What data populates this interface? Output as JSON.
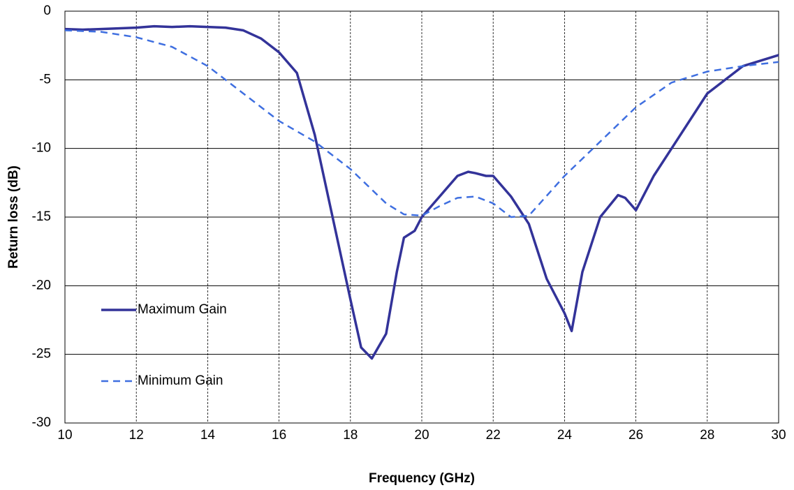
{
  "chart_data": {
    "type": "line",
    "xlabel": "Frequency (GHz)",
    "ylabel": "Return loss  (dB)",
    "xlim": [
      10,
      30
    ],
    "xticks": [
      10,
      12,
      14,
      16,
      18,
      20,
      22,
      24,
      26,
      28,
      30
    ],
    "ylim": [
      -30,
      0
    ],
    "yticks": [
      0,
      -5,
      -10,
      -15,
      -20,
      -25,
      -30
    ],
    "grid": true,
    "legend": "lower left",
    "series": [
      {
        "name": "Maximum Gain",
        "color": "#333399",
        "dash": "solid",
        "x": [
          10,
          10.5,
          11,
          11.5,
          12,
          12.5,
          13,
          13.5,
          14,
          14.5,
          15,
          15.5,
          16,
          16.5,
          17,
          17.5,
          18,
          18.3,
          18.6,
          19,
          19.3,
          19.5,
          19.8,
          20,
          20.5,
          21,
          21.3,
          21.5,
          21.8,
          22,
          22.5,
          23,
          23.5,
          24,
          24.2,
          24.5,
          25,
          25.5,
          25.7,
          26,
          26.5,
          27,
          28,
          29,
          30
        ],
        "values": [
          -1.3,
          -1.35,
          -1.3,
          -1.25,
          -1.2,
          -1.1,
          -1.15,
          -1.1,
          -1.15,
          -1.2,
          -1.4,
          -2.0,
          -3.0,
          -4.5,
          -9,
          -15,
          -21,
          -24.5,
          -25.3,
          -23.5,
          -19,
          -16.5,
          -16,
          -15,
          -13.5,
          -12,
          -11.7,
          -11.8,
          -12,
          -12,
          -13.5,
          -15.5,
          -19.5,
          -22,
          -23.3,
          -19,
          -15,
          -13.4,
          -13.6,
          -14.5,
          -12,
          -10,
          -6,
          -4,
          -3.2
        ]
      },
      {
        "name": "Minimum Gain",
        "color": "#3f6fe0",
        "dash": "dashed",
        "x": [
          10,
          11,
          12,
          13,
          14,
          15,
          16,
          17,
          18,
          19,
          19.5,
          20,
          20.5,
          21,
          21.5,
          22,
          22.5,
          23,
          24,
          25,
          26,
          27,
          28,
          29,
          30
        ],
        "values": [
          -1.4,
          -1.5,
          -1.9,
          -2.6,
          -4,
          -6,
          -8,
          -9.5,
          -11.5,
          -14,
          -14.8,
          -14.9,
          -14.2,
          -13.6,
          -13.5,
          -14,
          -15,
          -14.9,
          -12,
          -9.5,
          -7,
          -5.2,
          -4.4,
          -4,
          -3.7
        ]
      }
    ]
  }
}
